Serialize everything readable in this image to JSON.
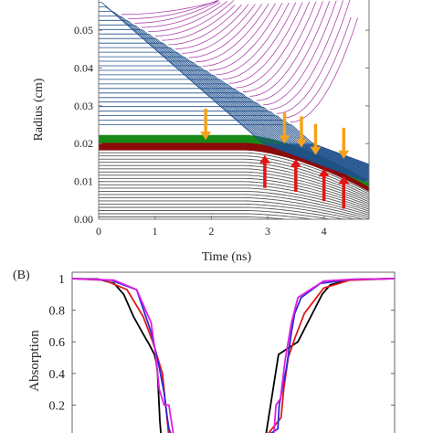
{
  "chart_data": [
    {
      "panel": "A",
      "type": "line",
      "xlabel": "Time (ns)",
      "ylabel": "Radius (cm)",
      "xlim": [
        0,
        4.8
      ],
      "ylim": [
        0,
        0.058
      ],
      "x_ticks": [
        "0",
        "1",
        "2",
        "3",
        "4"
      ],
      "y_ticks": [
        "0.00",
        "0.01",
        "0.02",
        "0.03",
        "0.04",
        "0.05"
      ],
      "layers": [
        {
          "name": "outer",
          "color": "#1f4f8c",
          "r_start": [
            0.025,
            0.058
          ]
        },
        {
          "name": "green",
          "color": "#178a17",
          "r_start": [
            0.0205,
            0.0225
          ]
        },
        {
          "name": "dark-red",
          "color": "#8b0a0a",
          "r_start": [
            0.0185,
            0.0205
          ]
        },
        {
          "name": "core",
          "color": "#555555",
          "r_start": [
            0.0,
            0.0185
          ]
        }
      ],
      "ablation_color": "#a0259e",
      "orange_arrows": [
        {
          "time": 1.9,
          "radius": 0.021
        },
        {
          "time": 3.3,
          "radius": 0.02
        },
        {
          "time": 3.6,
          "radius": 0.019
        },
        {
          "time": 3.85,
          "radius": 0.017
        },
        {
          "time": 4.35,
          "radius": 0.016
        }
      ],
      "red_arrows": [
        {
          "time": 2.95,
          "radius": 0.0165
        },
        {
          "time": 3.5,
          "radius": 0.0155
        },
        {
          "time": 4.0,
          "radius": 0.013
        },
        {
          "time": 4.35,
          "radius": 0.011
        }
      ]
    },
    {
      "panel": "B",
      "panel_label": "(B)",
      "type": "line",
      "ylabel": "Absorption",
      "ylim": [
        0,
        1
      ],
      "y_ticks": [
        "0.2",
        "0.4",
        "0.6",
        "0.8",
        "1"
      ],
      "xlim": [
        0,
        1
      ],
      "series": [
        {
          "color": "#000000",
          "x": [
            0,
            0.08,
            0.13,
            0.16,
            0.19,
            0.22,
            0.24,
            0.255,
            0.26,
            0.265,
            0.272,
            0.276,
            0.28,
            0.3,
            0.32,
            0.36,
            0.365,
            0.372,
            0.38,
            0.388,
            0.4,
            0.43,
            0.48,
            0.52,
            0.6,
            0.64,
            0.7,
            0.745,
            0.775,
            0.8,
            0.86,
            1
          ],
          "y": [
            1,
            0.997,
            0.97,
            0.9,
            0.76,
            0.65,
            0.58,
            0.52,
            0.48,
            0.4,
            0.1,
            0.0,
            0.0,
            0.0,
            0.0,
            0.0,
            0.0,
            0.0,
            0.0,
            0.0,
            0.0,
            0.0,
            0.0,
            0.0,
            0.0,
            0.52,
            0.6,
            0.78,
            0.9,
            0.96,
            0.995,
            1
          ]
        },
        {
          "color": "#e01b1b",
          "x": [
            0,
            0.1,
            0.17,
            0.22,
            0.25,
            0.265,
            0.28,
            0.3,
            0.32,
            0.36,
            0.4,
            0.43,
            0.5,
            0.6,
            0.648,
            0.656,
            0.67,
            0.69,
            0.72,
            0.78,
            0.86,
            1
          ],
          "y": [
            1,
            0.99,
            0.93,
            0.76,
            0.6,
            0.5,
            0.4,
            0.0,
            0.0,
            0.0,
            0.0,
            0.0,
            0.0,
            0.0,
            0.12,
            0.3,
            0.5,
            0.62,
            0.78,
            0.94,
            0.99,
            1
          ]
        },
        {
          "color": "#2a2ad6",
          "x": [
            0,
            0.12,
            0.2,
            0.245,
            0.27,
            0.285,
            0.295,
            0.3,
            0.31,
            0.36,
            0.4,
            0.43,
            0.5,
            0.6,
            0.638,
            0.642,
            0.665,
            0.68,
            0.69,
            0.71,
            0.77,
            0.86,
            1
          ],
          "y": [
            1,
            0.99,
            0.93,
            0.66,
            0.44,
            0.28,
            0.12,
            0.05,
            0.0,
            0.0,
            0.0,
            0.0,
            0.0,
            0.0,
            0.05,
            0.2,
            0.44,
            0.66,
            0.78,
            0.88,
            0.97,
            0.995,
            1
          ]
        },
        {
          "color": "#e21ee2",
          "x": [
            0,
            0.13,
            0.2,
            0.245,
            0.26,
            0.27,
            0.285,
            0.3,
            0.315,
            0.36,
            0.4,
            0.43,
            0.5,
            0.6,
            0.625,
            0.632,
            0.646,
            0.66,
            0.68,
            0.7,
            0.78,
            0.86,
            1
          ],
          "y": [
            1,
            0.99,
            0.93,
            0.72,
            0.5,
            0.3,
            0.2,
            0.2,
            0.0,
            0.0,
            0.0,
            0.0,
            0.0,
            0.0,
            0.0,
            0.2,
            0.24,
            0.48,
            0.72,
            0.88,
            0.985,
            0.995,
            1
          ]
        }
      ]
    }
  ]
}
